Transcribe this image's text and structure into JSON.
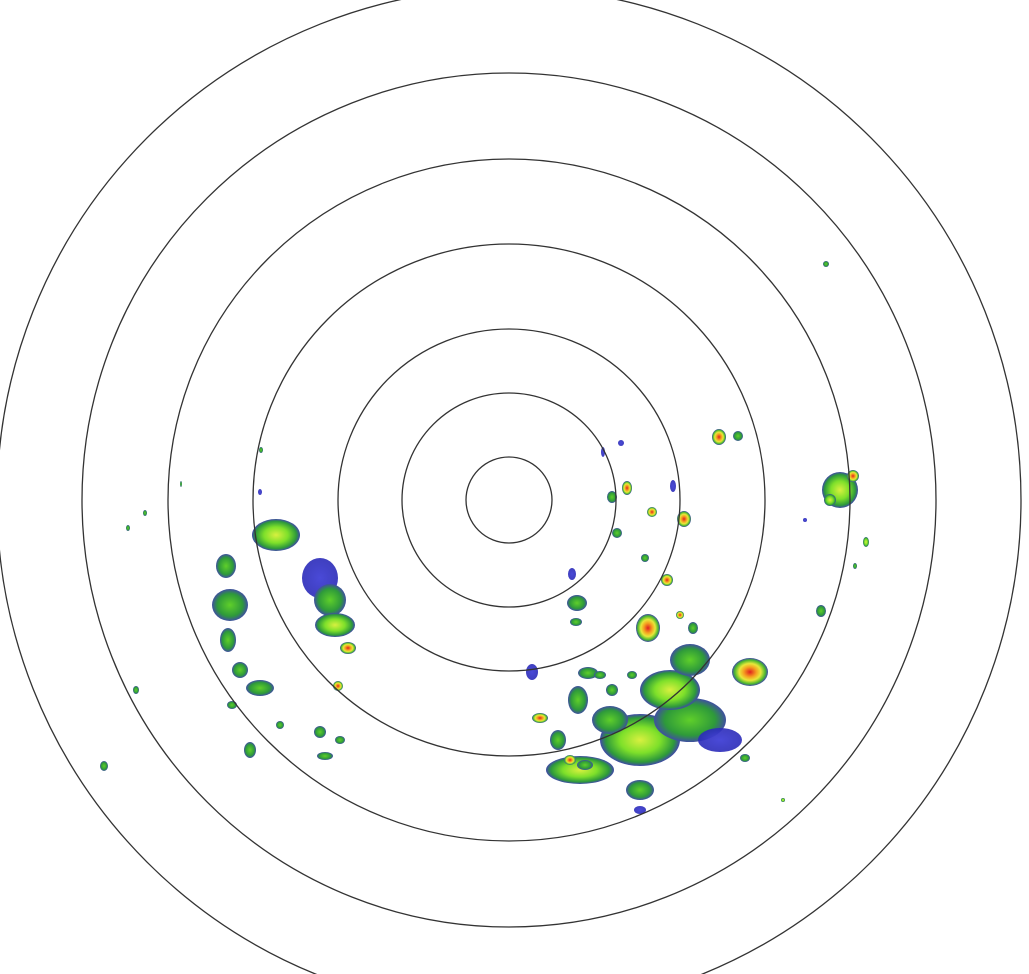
{
  "radar": {
    "range_ring_count": 7,
    "colors": {
      "ring": "#333333",
      "background": "#ffffff",
      "weak": "#3a3acc",
      "light": "#2e9a2e",
      "moderate": "#8ee62a",
      "heavy": "#f5e23a",
      "intense": "#e02020"
    }
  }
}
